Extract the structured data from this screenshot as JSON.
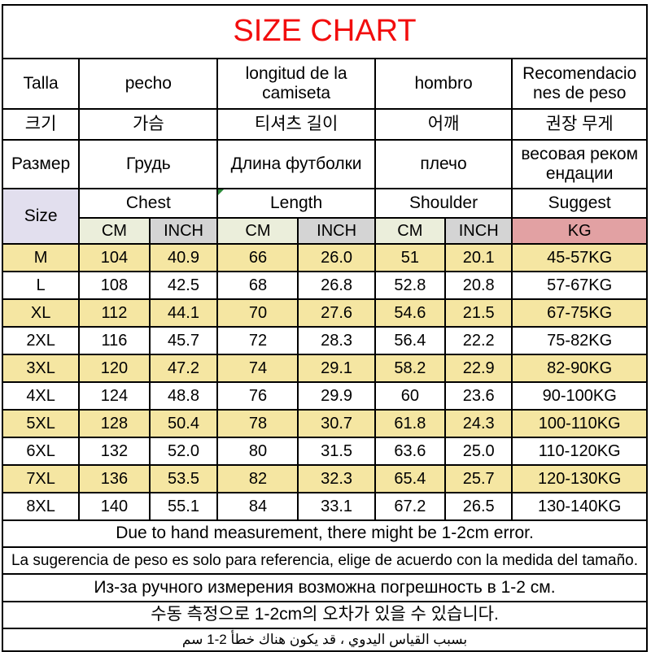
{
  "title": "SIZE CHART",
  "lang_headers": {
    "spanish": {
      "size": "Talla",
      "chest": "pecho",
      "length": "longitud de la camiseta",
      "shoulder": "hombro",
      "suggest_l1": "Recomendacio",
      "suggest_l2": "nes de peso"
    },
    "korean": {
      "size": "크기",
      "chest": "가슴",
      "length": "티셔츠 길이",
      "shoulder": "어깨",
      "suggest": "권장 무게"
    },
    "russian": {
      "size": "Размер",
      "chest": "Грудь",
      "length": "Длина футболки",
      "shoulder": "плечо",
      "suggest_l1": "весовая реком",
      "suggest_l2": "ендации"
    }
  },
  "group_header": {
    "size": "Size",
    "chest": "Chest",
    "length": "Length",
    "shoulder": "Shoulder",
    "suggest": "Suggest"
  },
  "units": {
    "cm": "CM",
    "inch": "INCH",
    "kg": "KG"
  },
  "rows": [
    {
      "size": "M",
      "chest_cm": "104",
      "chest_inch": "40.9",
      "length_cm": "66",
      "length_inch": "26.0",
      "shoulder_cm": "51",
      "shoulder_inch": "20.1",
      "kg": "45-57KG"
    },
    {
      "size": "L",
      "chest_cm": "108",
      "chest_inch": "42.5",
      "length_cm": "68",
      "length_inch": "26.8",
      "shoulder_cm": "52.8",
      "shoulder_inch": "20.8",
      "kg": "57-67KG"
    },
    {
      "size": "XL",
      "chest_cm": "112",
      "chest_inch": "44.1",
      "length_cm": "70",
      "length_inch": "27.6",
      "shoulder_cm": "54.6",
      "shoulder_inch": "21.5",
      "kg": "67-75KG"
    },
    {
      "size": "2XL",
      "chest_cm": "116",
      "chest_inch": "45.7",
      "length_cm": "72",
      "length_inch": "28.3",
      "shoulder_cm": "56.4",
      "shoulder_inch": "22.2",
      "kg": "75-82KG"
    },
    {
      "size": "3XL",
      "chest_cm": "120",
      "chest_inch": "47.2",
      "length_cm": "74",
      "length_inch": "29.1",
      "shoulder_cm": "58.2",
      "shoulder_inch": "22.9",
      "kg": "82-90KG"
    },
    {
      "size": "4XL",
      "chest_cm": "124",
      "chest_inch": "48.8",
      "length_cm": "76",
      "length_inch": "29.9",
      "shoulder_cm": "60",
      "shoulder_inch": "23.6",
      "kg": "90-100KG"
    },
    {
      "size": "5XL",
      "chest_cm": "128",
      "chest_inch": "50.4",
      "length_cm": "78",
      "length_inch": "30.7",
      "shoulder_cm": "61.8",
      "shoulder_inch": "24.3",
      "kg": "100-110KG"
    },
    {
      "size": "6XL",
      "chest_cm": "132",
      "chest_inch": "52.0",
      "length_cm": "80",
      "length_inch": "31.5",
      "shoulder_cm": "63.6",
      "shoulder_inch": "25.0",
      "kg": "110-120KG"
    },
    {
      "size": "7XL",
      "chest_cm": "136",
      "chest_inch": "53.5",
      "length_cm": "82",
      "length_inch": "32.3",
      "shoulder_cm": "65.4",
      "shoulder_inch": "25.7",
      "kg": "120-130KG"
    },
    {
      "size": "8XL",
      "chest_cm": "140",
      "chest_inch": "55.1",
      "length_cm": "84",
      "length_inch": "33.1",
      "shoulder_cm": "67.2",
      "shoulder_inch": "26.5",
      "kg": "130-140KG"
    }
  ],
  "notes": {
    "english": "Due to hand measurement, there might be 1-2cm error.",
    "spanish": "La sugerencia de peso es solo para referencia, elige de acuerdo con la medida del tamaño.",
    "russian": "Из-за ручного измерения возможна погрешность в 1-2 см.",
    "korean": "수동 측정으로 1-2cm의 오차가 있을 수 있습니다.",
    "arabic": "بسبب القياس اليدوي ، قد يكون هناك خطأ 2-1 سم"
  },
  "colors": {
    "title": "#f20d0d",
    "size_header_bg": "#e2dfee",
    "cm_bg": "#ebeedb",
    "inch_bg": "#d4d4d4",
    "kg_bg": "#e2a1a3",
    "row_stripe_bg": "#f5e6a2",
    "border": "#000000"
  }
}
